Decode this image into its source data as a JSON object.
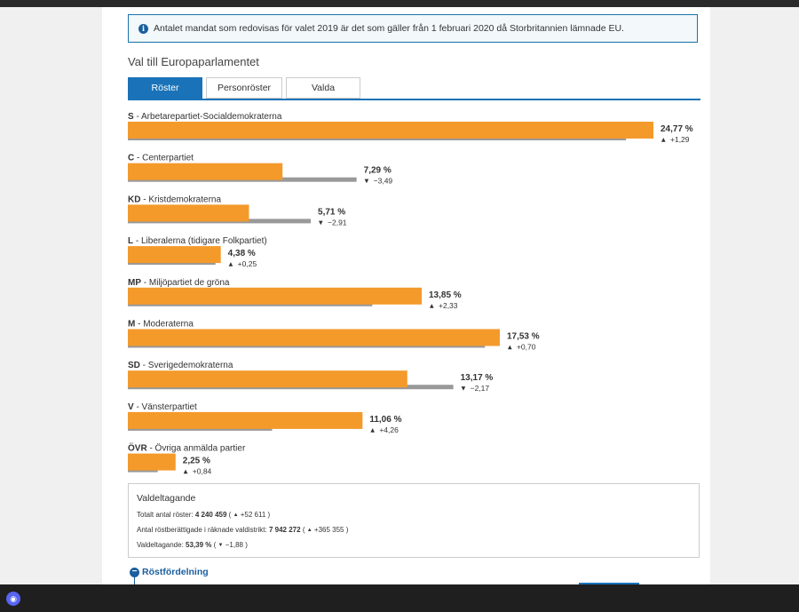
{
  "notice": "Antalet mandat som redovisas för valet 2019 är det som gäller från 1 februari 2020 då Storbritannien lämnade EU.",
  "heading": "Val till Europaparlamentet",
  "tabs": [
    {
      "label": "Röster",
      "active": true
    },
    {
      "label": "Personröster",
      "active": false
    },
    {
      "label": "Valda",
      "active": false
    }
  ],
  "colors": {
    "current": "#f39a2b",
    "previous": "#999999",
    "accent": "#1a73b8"
  },
  "chart_data": {
    "type": "bar",
    "orientation": "horizontal",
    "unit": "%",
    "series": [
      {
        "values": [
          24.77,
          7.29,
          5.71,
          4.38,
          13.85,
          17.53,
          13.17,
          11.06,
          2.25
        ]
      },
      {
        "values": [
          23.48,
          10.78,
          8.62,
          4.13,
          11.52,
          16.83,
          15.34,
          6.8,
          1.41
        ]
      }
    ],
    "parties": [
      {
        "code": "S",
        "name": "Arbetarepartiet-Socialdemokraterna",
        "value": 24.77,
        "value_label": "24,77 %",
        "change": 1.29,
        "change_label": "+1,29",
        "direction": "up"
      },
      {
        "code": "C",
        "name": "Centerpartiet",
        "value": 7.29,
        "value_label": "7,29 %",
        "change": -3.49,
        "change_label": "−3,49",
        "direction": "down"
      },
      {
        "code": "KD",
        "name": "Kristdemokraterna",
        "value": 5.71,
        "value_label": "5,71 %",
        "change": -2.91,
        "change_label": "−2,91",
        "direction": "down"
      },
      {
        "code": "L",
        "name": "Liberalerna (tidigare Folkpartiet)",
        "value": 4.38,
        "value_label": "4,38 %",
        "change": 0.25,
        "change_label": "+0,25",
        "direction": "up"
      },
      {
        "code": "MP",
        "name": "Miljöpartiet de gröna",
        "value": 13.85,
        "value_label": "13,85 %",
        "change": 2.33,
        "change_label": "+2,33",
        "direction": "up"
      },
      {
        "code": "M",
        "name": "Moderaterna",
        "value": 17.53,
        "value_label": "17,53 %",
        "change": 0.7,
        "change_label": "+0,70",
        "direction": "up"
      },
      {
        "code": "SD",
        "name": "Sverigedemokraterna",
        "value": 13.17,
        "value_label": "13,17 %",
        "change": -2.17,
        "change_label": "−2,17",
        "direction": "down"
      },
      {
        "code": "V",
        "name": "Vänsterpartiet",
        "value": 11.06,
        "value_label": "11,06 %",
        "change": 4.26,
        "change_label": "+4,26",
        "direction": "up"
      },
      {
        "code": "ÖVR",
        "name": "Övriga anmälda partier",
        "value": 2.25,
        "value_label": "2,25 %",
        "change": 0.84,
        "change_label": "+0,84",
        "direction": "up"
      }
    ],
    "xlim": [
      0,
      26
    ]
  },
  "turnout": {
    "title": "Valdeltagande",
    "total_votes_label": "Totalt antal röster:",
    "total_votes": "4 240 459",
    "total_votes_change": "+52 611",
    "eligible_label": "Antal röstberättigade i räknade valdistrikt:",
    "eligible": "7 942 272",
    "eligible_change": "+365 355",
    "participation_label": "Valdeltagande:",
    "participation": "53,39 %",
    "participation_change": "−1,88"
  },
  "distribution_toggle": "Röstfördelning",
  "glyphs": {
    "info": "i",
    "up": "▲",
    "down": "▼",
    "open": "(",
    "close": ")",
    "collapse": "−",
    "discord": "◉"
  }
}
